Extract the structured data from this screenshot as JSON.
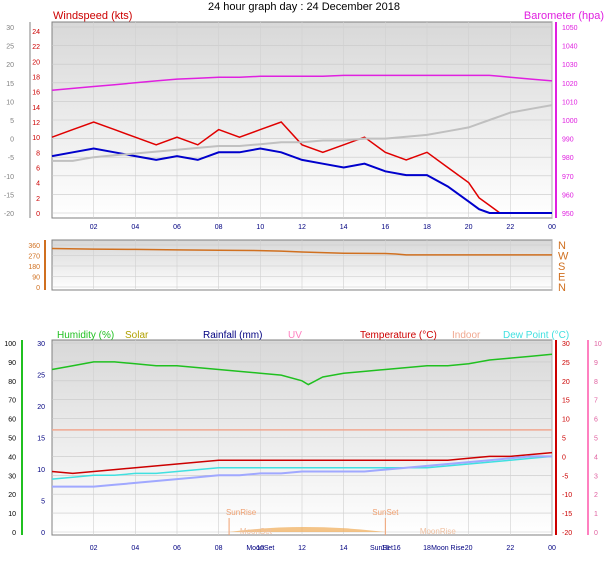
{
  "title": "24 hour graph day : 24 December 2018",
  "hour_labels": [
    "02",
    "04",
    "06",
    "08",
    "10",
    "12",
    "14",
    "16",
    "18",
    "20",
    "22",
    "00"
  ],
  "colors": {
    "windspeed": "#e00000",
    "windspeed_avg": "#0000cc",
    "wind_chill_grey": "#c0c0c0",
    "barometer": "#e020e0",
    "direction": "#d07020",
    "humidity": "#20c020",
    "solar": "#b0a000",
    "rainfall": "#000080",
    "uv": "#ff80c0",
    "temperature": "#cc0000",
    "indoor": "#f0a890",
    "dewpoint": "#40e0e0",
    "bluegrey": "#a0a8ff"
  },
  "chart_data": [
    {
      "type": "line",
      "name": "wind-barometer",
      "legend_left": "Windspeed (kts)",
      "legend_right": "Barometer (hpa)",
      "left_ticks": [
        "24",
        "22",
        "20",
        "18",
        "16",
        "14",
        "12",
        "10",
        "8",
        "6",
        "4",
        "2",
        "0"
      ],
      "left_axis_ticks": [
        "30",
        "25",
        "20",
        "15",
        "10",
        "5",
        "0",
        "-5",
        "-10",
        "-15",
        "-20"
      ],
      "right_ticks": [
        "1050",
        "1040",
        "1030",
        "1020",
        "1010",
        "1000",
        "990",
        "980",
        "970",
        "960",
        "950"
      ],
      "ylim_wind": [
        0,
        24
      ],
      "ylim_baro": [
        950,
        1050
      ],
      "x": [
        0,
        1,
        2,
        3,
        4,
        5,
        6,
        7,
        8,
        9,
        10,
        11,
        12,
        13,
        14,
        15,
        16,
        17,
        18,
        19,
        20,
        20.5,
        21,
        21.5,
        22,
        23,
        24
      ],
      "series": [
        {
          "key": "windspeed",
          "values": [
            10,
            11,
            12,
            11,
            10,
            9,
            10,
            9,
            11,
            10,
            11,
            12,
            9,
            8,
            9,
            10,
            8,
            7,
            8,
            6,
            4,
            2,
            1,
            0,
            0,
            0,
            0
          ]
        },
        {
          "key": "windspeed_avg",
          "values": [
            7.5,
            8,
            8.5,
            8,
            7.5,
            7,
            7.5,
            7,
            8,
            8,
            8.5,
            8,
            7,
            6.5,
            6,
            6.5,
            5.5,
            5,
            5,
            3.5,
            1.5,
            0.5,
            0,
            0,
            0,
            0,
            0
          ]
        },
        {
          "key": "barometer",
          "values": [
            1016,
            1017,
            1018,
            1019,
            1020,
            1021,
            1022,
            1022.5,
            1023,
            1023,
            1023.5,
            1023.5,
            1023.5,
            1023.5,
            1024,
            1024,
            1024,
            1024,
            1024,
            1024,
            1024,
            1024,
            1024,
            1023.5,
            1023,
            1022,
            1021
          ]
        },
        {
          "key": "wind_chill_grey",
          "values": [
            -6,
            -6,
            -5,
            -4.5,
            -4,
            -3.5,
            -3,
            -2.5,
            -2,
            -2,
            -1.5,
            -1,
            -1,
            -0.5,
            -0.5,
            0,
            0,
            0.5,
            1,
            2,
            3,
            4,
            5,
            6,
            7,
            8,
            9
          ]
        }
      ]
    },
    {
      "type": "line",
      "name": "wind-direction",
      "left_ticks": [
        "360",
        "270",
        "180",
        "90",
        "0"
      ],
      "right_ticks": [
        "N",
        "W",
        "S",
        "E",
        "N"
      ],
      "ylim": [
        0,
        360
      ],
      "x": [
        0,
        2,
        4,
        6,
        8,
        10,
        11,
        12,
        13,
        14,
        15,
        16,
        16.5,
        17,
        18,
        20,
        22,
        24
      ],
      "series": [
        {
          "key": "direction",
          "values": [
            330,
            325,
            322,
            318,
            315,
            312,
            308,
            300,
            295,
            290,
            288,
            287,
            283,
            275,
            275,
            275,
            275,
            275
          ]
        }
      ]
    },
    {
      "type": "line",
      "name": "temp-humidity",
      "legend": [
        "Humidity (%)",
        "Solar",
        "Rainfall (mm)",
        "UV",
        "Temperature (°C)",
        "Indoor",
        "Dew Point (°C)"
      ],
      "left_ticks": [
        "100",
        "90",
        "80",
        "70",
        "60",
        "50",
        "40",
        "30",
        "20",
        "10",
        "0"
      ],
      "left_axis_ticks": [
        "30",
        "25",
        "20",
        "15",
        "10",
        "5",
        "0"
      ],
      "right_ticks": [
        "30",
        "25",
        "20",
        "15",
        "10",
        "5",
        "0",
        "-5",
        "-10",
        "-15",
        "-20"
      ],
      "far_right_ticks": [
        "10",
        "9",
        "8",
        "7",
        "6",
        "5",
        "4",
        "3",
        "2",
        "1",
        "0"
      ],
      "ylim_temp": [
        -20,
        30
      ],
      "x": [
        0,
        1,
        2,
        3,
        4,
        5,
        6,
        7,
        8,
        9,
        10,
        11,
        12,
        12.3,
        13,
        14,
        15,
        16,
        17,
        18,
        19,
        20,
        21,
        22,
        23,
        24
      ],
      "series": [
        {
          "key": "humidity",
          "values": [
            86,
            88,
            90,
            90,
            89,
            88,
            88,
            87,
            86,
            85,
            84,
            83,
            80,
            78,
            82,
            84,
            85,
            86,
            87,
            88,
            88,
            89,
            91,
            92,
            93,
            94
          ]
        },
        {
          "key": "temperature",
          "values": [
            -4,
            -4.5,
            -4,
            -3.5,
            -3,
            -2.5,
            -2,
            -1.5,
            -1,
            -1,
            -1,
            -1,
            -1,
            -1,
            -1,
            -1,
            -1,
            -1,
            -1,
            -1,
            -1,
            -0.5,
            0,
            0,
            0.5,
            1
          ]
        },
        {
          "key": "dewpoint",
          "values": [
            -6,
            -5.5,
            -5,
            -5,
            -4.5,
            -4.5,
            -4,
            -3.5,
            -3,
            -3,
            -3,
            -3,
            -3,
            -3,
            -3,
            -3,
            -3,
            -3,
            -3,
            -3,
            -2.5,
            -2,
            -1.5,
            -1,
            -0.5,
            0
          ]
        },
        {
          "key": "indoor",
          "values": [
            7,
            7,
            7,
            7,
            7,
            7,
            7,
            7,
            7,
            7,
            7,
            7,
            7,
            7,
            7,
            7,
            7,
            7,
            7,
            7,
            7,
            7,
            7,
            7,
            7,
            7
          ]
        },
        {
          "key": "bluegrey",
          "values": [
            -8,
            -8,
            -8,
            -7.5,
            -7,
            -6.5,
            -6,
            -5.5,
            -5,
            -5,
            -4.5,
            -4.5,
            -4,
            -4,
            -4,
            -4,
            -4,
            -3.5,
            -3,
            -2.5,
            -2,
            -1.5,
            -1,
            -0.5,
            0,
            0
          ]
        }
      ],
      "annotations": {
        "sunrise": {
          "label": "SunRise",
          "hour": 8.5
        },
        "sunset": {
          "label": "SunSet",
          "hour": 16
        },
        "moonset": {
          "label": "MoonSet",
          "hour": 9.5
        },
        "moonrise": {
          "label": "MoonRise",
          "hour": 19
        },
        "moonset_axis": "MoonSet",
        "sunset_axis": "SunSet16",
        "moonrise_axis": "Moon Rise"
      }
    }
  ]
}
